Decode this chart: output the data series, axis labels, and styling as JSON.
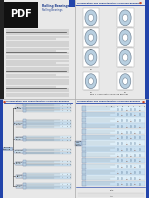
{
  "bg_white": "#ffffff",
  "bg_blue": "#c8dff0",
  "bg_light_blue": "#ddeef8",
  "title_color": "#1a3a8c",
  "tab_color": "#2244aa",
  "tree_line_color": "#555555",
  "text_dark": "#222222",
  "text_gray": "#555555",
  "row_alt1": "#ddeef8",
  "row_alt2": "#c8dff0",
  "border_color": "#99aabb",
  "panel_border": "#888899"
}
